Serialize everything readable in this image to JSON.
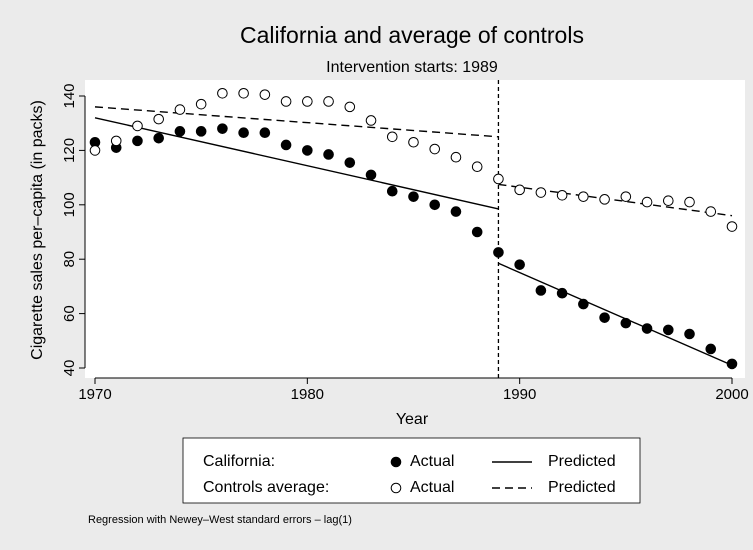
{
  "chart_data": {
    "type": "scatter",
    "title": "California and average of controls",
    "subtitle": "Intervention starts: 1989",
    "x_label": "Year",
    "y_label": "Cigarette sales per–capita (in packs)",
    "note": "Regression with Newey–West standard errors – lag(1)",
    "xlim": [
      1970,
      2000
    ],
    "xticks": [
      1970,
      1980,
      1990,
      2000
    ],
    "ylim": [
      40,
      140
    ],
    "yticks": [
      40,
      60,
      80,
      100,
      120,
      140
    ],
    "grid": false,
    "intervention": 1989,
    "x": [
      1970,
      1971,
      1972,
      1973,
      1974,
      1975,
      1976,
      1977,
      1978,
      1979,
      1980,
      1981,
      1982,
      1983,
      1984,
      1985,
      1986,
      1987,
      1988,
      1989,
      1990,
      1991,
      1992,
      1993,
      1994,
      1995,
      1996,
      1997,
      1998,
      1999,
      2000
    ],
    "groups": [
      {
        "label": "California:",
        "marker": "filled",
        "line": "solid",
        "series": {
          "name": "Actual",
          "color": "#000000",
          "values": [
            123,
            121,
            123.5,
            124.5,
            127,
            127,
            128,
            126.5,
            126.5,
            122,
            120,
            118.5,
            115.5,
            111,
            105,
            103,
            100,
            97.5,
            90,
            82.5,
            78,
            68.5,
            67.5,
            63.5,
            58.5,
            56.5,
            54.5,
            54,
            52.5,
            47,
            41.5
          ]
        },
        "fit": {
          "name": "Predicted",
          "color": "#000000",
          "segments": [
            {
              "x": [
                1970,
                1989
              ],
              "values": [
                132,
                98.5
              ]
            },
            {
              "x": [
                1989,
                2000
              ],
              "values": [
                78.5,
                41
              ]
            }
          ]
        }
      },
      {
        "label": "Controls average:",
        "marker": "hollow",
        "line": "dashed",
        "series": {
          "name": "Actual",
          "color": "#000000",
          "values": [
            120,
            123.5,
            129,
            131.5,
            135,
            137,
            141,
            141,
            140.5,
            138,
            138,
            138,
            136,
            131,
            125,
            123,
            120.5,
            117.5,
            114,
            109.5,
            105.5,
            104.5,
            103.5,
            103,
            102,
            103,
            101,
            101.5,
            101,
            97.5,
            92
          ]
        },
        "fit": {
          "name": "Predicted",
          "color": "#000000",
          "segments": [
            {
              "x": [
                1970,
                1989
              ],
              "values": [
                136,
                125
              ]
            },
            {
              "x": [
                1989,
                2000
              ],
              "values": [
                107.5,
                96
              ]
            }
          ]
        }
      }
    ]
  }
}
